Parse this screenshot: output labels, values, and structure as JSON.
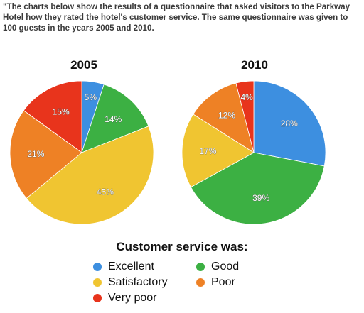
{
  "prompt_text": "\"The charts below show the results of a questionnaire that asked visitors to the Parkway Hotel how they rated the hotel's customer service. The same questionnaire was given to 100 guests in the years 2005 and 2010.",
  "legend_title": "Customer service was:",
  "categories": [
    "Excellent",
    "Good",
    "Satisfactory",
    "Poor",
    "Very poor"
  ],
  "colors": {
    "Excellent": "#3d8fe0",
    "Good": "#3cb043",
    "Satisfactory": "#f0c531",
    "Poor": "#ee8125",
    "Very poor": "#e8341c"
  },
  "legend": [
    {
      "label": "Excellent",
      "color": "#3d8fe0"
    },
    {
      "label": "Good",
      "color": "#3cb043"
    },
    {
      "label": "Satisfactory",
      "color": "#f0c531"
    },
    {
      "label": "Poor",
      "color": "#ee8125"
    },
    {
      "label": "Very poor",
      "color": "#e8341c"
    }
  ],
  "chart_data": [
    {
      "type": "pie",
      "title": "2005",
      "slices": [
        {
          "label": "Excellent",
          "value": 5,
          "display": "5%"
        },
        {
          "label": "Good",
          "value": 14,
          "display": "14%"
        },
        {
          "label": "Satisfactory",
          "value": 45,
          "display": "45%"
        },
        {
          "label": "Poor",
          "value": 21,
          "display": "21%"
        },
        {
          "label": "Very poor",
          "value": 15,
          "display": "15%"
        }
      ],
      "legend_placement": "bottom"
    },
    {
      "type": "pie",
      "title": "2010",
      "slices": [
        {
          "label": "Excellent",
          "value": 28,
          "display": "28%"
        },
        {
          "label": "Good",
          "value": 39,
          "display": "39%"
        },
        {
          "label": "Satisfactory",
          "value": 17,
          "display": "17%"
        },
        {
          "label": "Poor",
          "value": 12,
          "display": "12%"
        },
        {
          "label": "Very poor",
          "value": 4,
          "display": "4%"
        }
      ],
      "legend_placement": "bottom"
    }
  ]
}
